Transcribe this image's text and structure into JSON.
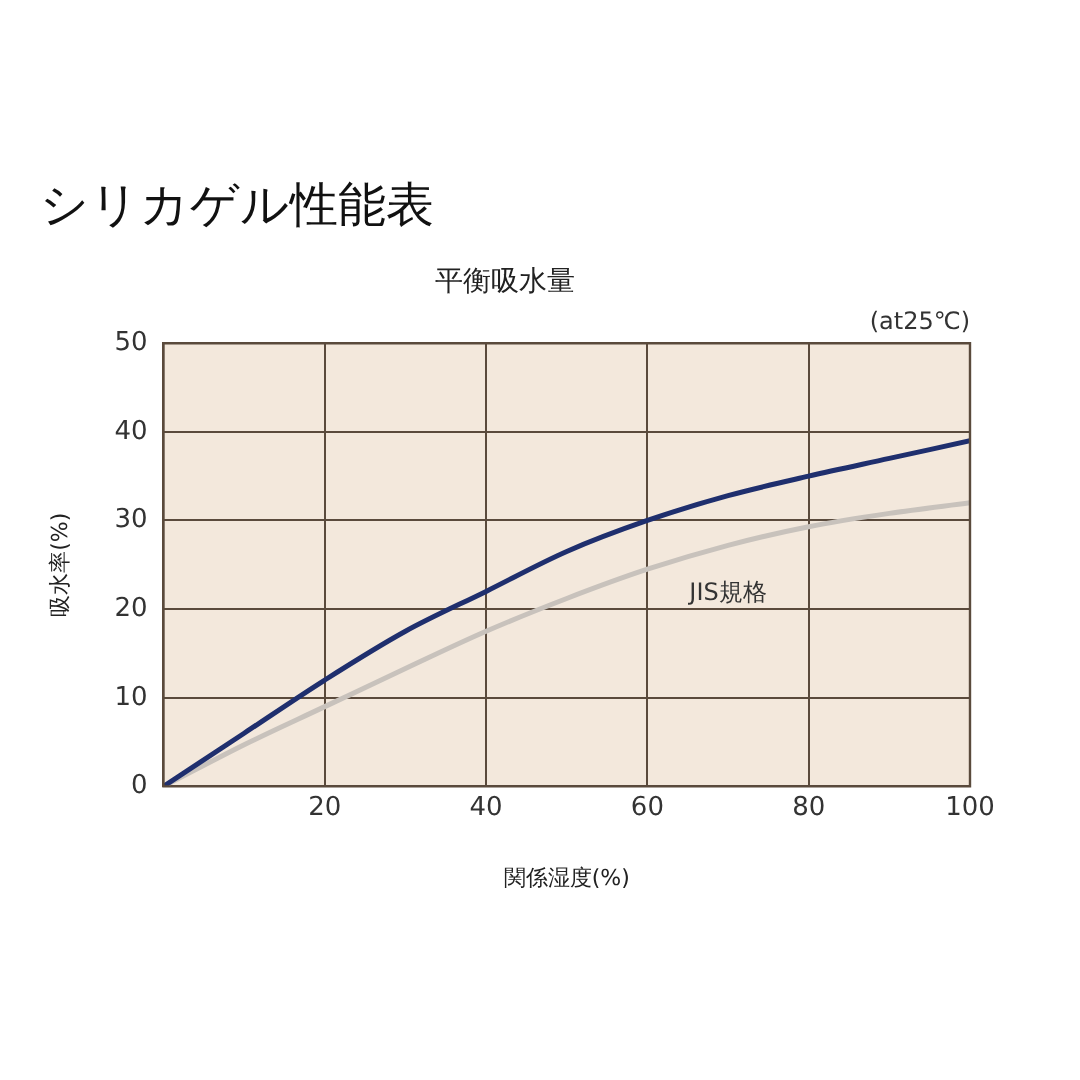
{
  "chart_data": {
    "type": "line",
    "title": "シリカゲル性能表",
    "subtitle": "平衡吸水量",
    "xlabel": "関係湿度(%)",
    "ylabel": "吸水率(%)",
    "annotations": [
      "(at25℃)"
    ],
    "x": [
      0,
      10,
      20,
      30,
      40,
      50,
      60,
      70,
      80,
      90,
      100
    ],
    "series": [
      {
        "color": "#1f2f6e",
        "values": [
          0,
          6,
          12,
          17.5,
          22,
          26.5,
          30,
          32.8,
          35,
          37,
          39
        ]
      },
      {
        "name": "JIS規格",
        "color": "#c8c2bc",
        "values": [
          0,
          4.7,
          9,
          13.3,
          17.5,
          21.2,
          24.5,
          27.2,
          29.3,
          30.8,
          32
        ]
      }
    ],
    "xlim": [
      0,
      100
    ],
    "xticks": [
      {
        "value": 0,
        "label": null
      },
      20,
      40,
      60,
      80,
      100
    ],
    "ylim": [
      0,
      50
    ],
    "yticks": [
      0,
      10,
      20,
      30,
      40,
      50
    ],
    "grid": true,
    "legend": false,
    "marker": "none",
    "line_style": "solid"
  }
}
